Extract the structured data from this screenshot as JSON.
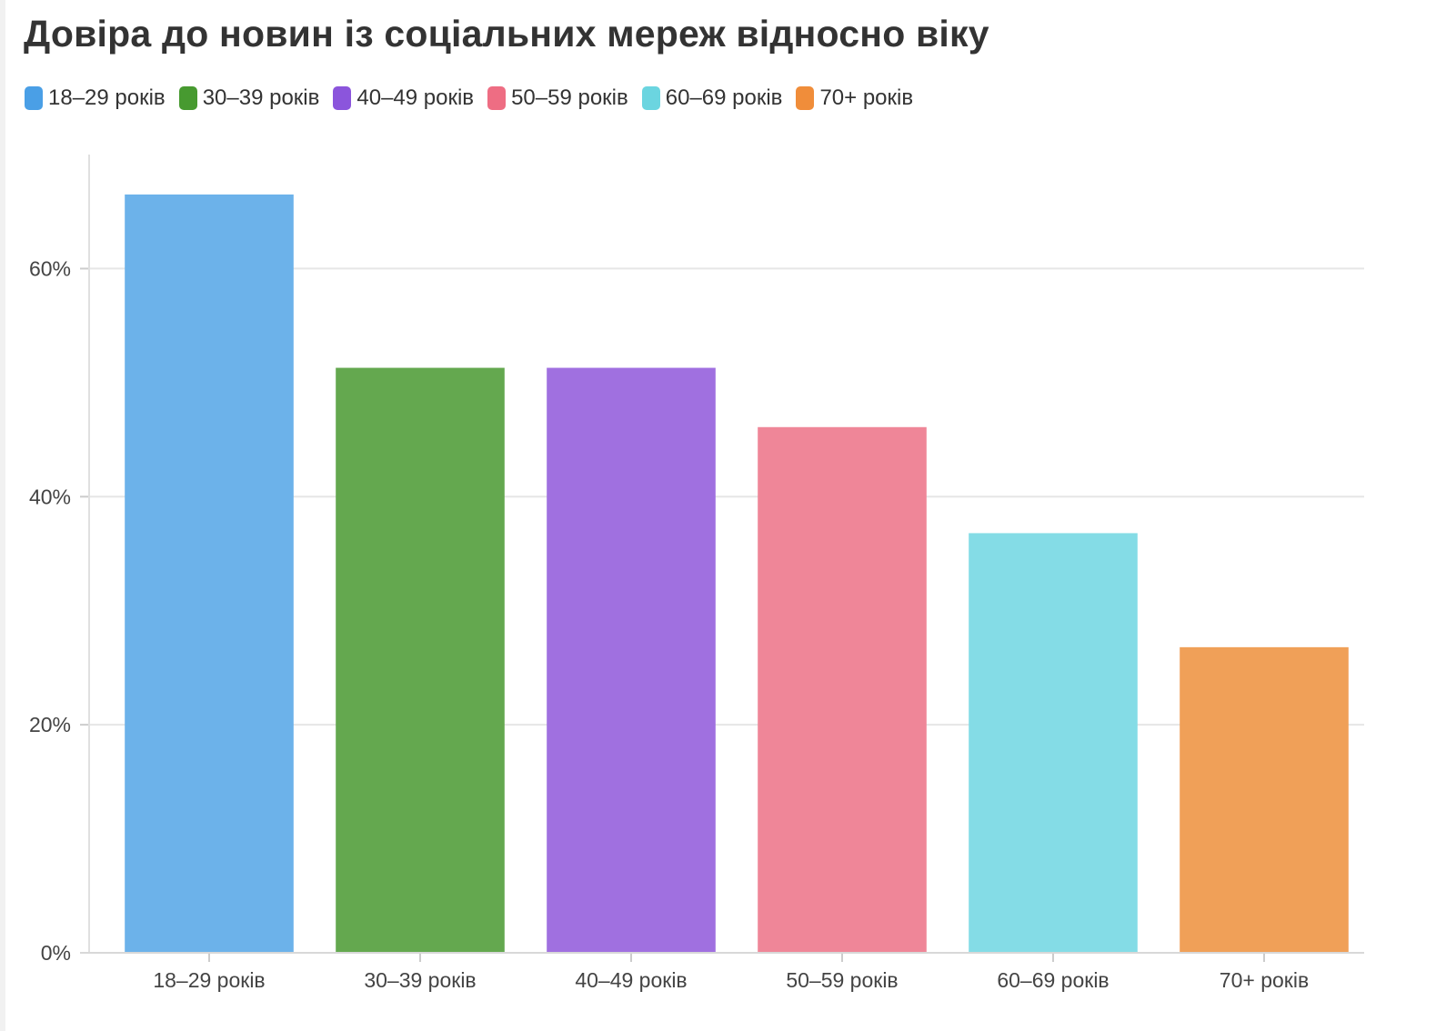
{
  "chart_data": {
    "type": "bar",
    "title": "Довіра до новин із соціальних мереж відносно віку",
    "xlabel": "",
    "ylabel": "",
    "categories": [
      "18–29 років",
      "30–39 років",
      "40–49 років",
      "50–59 років",
      "60–69 років",
      "70+ років"
    ],
    "values": [
      66.5,
      51.3,
      51.3,
      46.1,
      36.8,
      26.8
    ],
    "colors": [
      "#6cb2ea",
      "#64a84f",
      "#a070e0",
      "#ef8698",
      "#84dce6",
      "#f0a058"
    ],
    "legend_colors": [
      "#4a9fe6",
      "#479a30",
      "#8b55dc",
      "#ee6d83",
      "#6bd5e0",
      "#f08d3a"
    ],
    "ylim": [
      0,
      70
    ],
    "yticks": [
      0,
      20,
      40,
      60
    ],
    "ytick_labels": [
      "0%",
      "20%",
      "40%",
      "60%"
    ],
    "legend_position": "top-left",
    "grid": true
  }
}
